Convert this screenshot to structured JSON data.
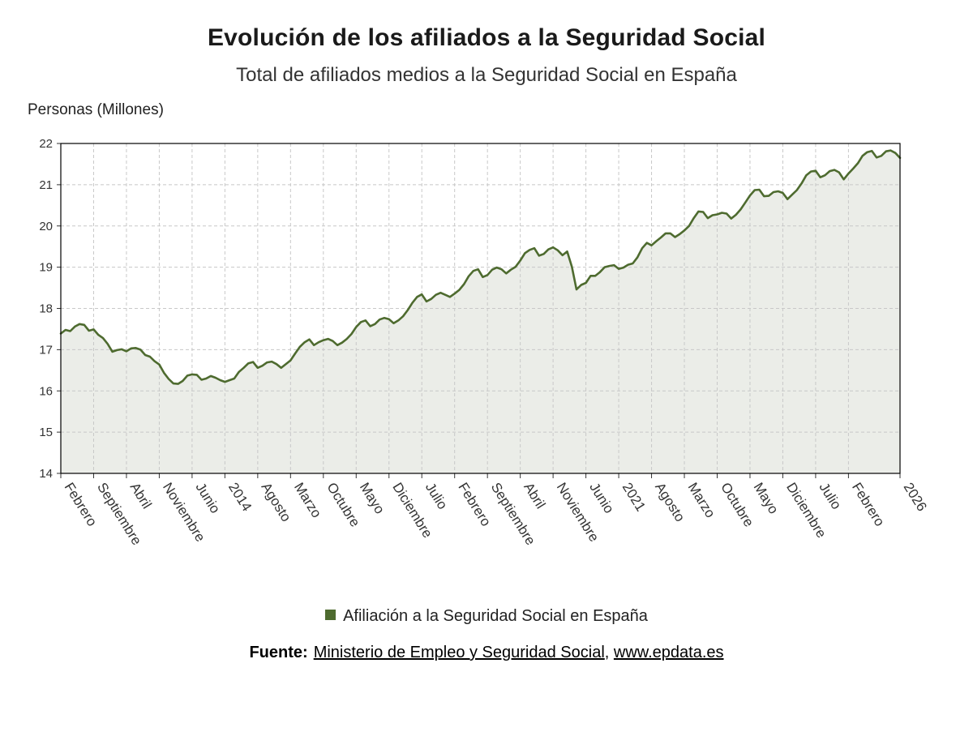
{
  "footer": {
    "source_label": "Fuente:",
    "source_name": "Ministerio de Empleo y Seguridad Social",
    "separator": ", ",
    "source_url": "www.epdata.es"
  },
  "chart_data": {
    "type": "line",
    "title": "Evolución de los afiliados a la Seguridad Social",
    "subtitle": "Total de afiliados medios a la Seguridad Social en España",
    "ylabel": "Personas (Millones)",
    "xlabel": "",
    "ylim": [
      14,
      22
    ],
    "y_ticks": [
      14,
      15,
      16,
      17,
      18,
      19,
      20,
      21,
      22
    ],
    "grid": "dashed",
    "legend_position": "bottom",
    "series_name": "Afiliación a la Seguridad Social en España",
    "color": "#4e6b2f",
    "area_color": "rgba(115,125,95,0.14)",
    "grid_color": "#c8c8c8",
    "x_unit": "month",
    "x_tick_labels": [
      {
        "index": 0,
        "label": "Febrero"
      },
      {
        "index": 7,
        "label": "Septiembre"
      },
      {
        "index": 14,
        "label": "Abril"
      },
      {
        "index": 21,
        "label": "Noviembre"
      },
      {
        "index": 28,
        "label": "Junio"
      },
      {
        "index": 35,
        "label": "2014"
      },
      {
        "index": 42,
        "label": "Agosto"
      },
      {
        "index": 49,
        "label": "Marzo"
      },
      {
        "index": 56,
        "label": "Octubre"
      },
      {
        "index": 63,
        "label": "Mayo"
      },
      {
        "index": 70,
        "label": "Diciembre"
      },
      {
        "index": 77,
        "label": "Julio"
      },
      {
        "index": 84,
        "label": "Febrero"
      },
      {
        "index": 91,
        "label": "Septiembre"
      },
      {
        "index": 98,
        "label": "Abril"
      },
      {
        "index": 105,
        "label": "Noviembre"
      },
      {
        "index": 112,
        "label": "Junio"
      },
      {
        "index": 119,
        "label": "2021"
      },
      {
        "index": 126,
        "label": "Agosto"
      },
      {
        "index": 133,
        "label": "Marzo"
      },
      {
        "index": 140,
        "label": "Octubre"
      },
      {
        "index": 147,
        "label": "Mayo"
      },
      {
        "index": 154,
        "label": "Diciembre"
      },
      {
        "index": 161,
        "label": "Julio"
      },
      {
        "index": 168,
        "label": "Febrero"
      },
      {
        "index": 179,
        "label": "2026"
      }
    ],
    "values": [
      17.39,
      17.48,
      17.45,
      17.56,
      17.62,
      17.6,
      17.46,
      17.49,
      17.36,
      17.28,
      17.14,
      16.95,
      16.99,
      17.01,
      16.96,
      17.03,
      17.04,
      17.0,
      16.87,
      16.83,
      16.72,
      16.64,
      16.44,
      16.29,
      16.18,
      16.17,
      16.24,
      16.37,
      16.4,
      16.39,
      16.27,
      16.3,
      16.36,
      16.32,
      16.26,
      16.22,
      16.26,
      16.3,
      16.46,
      16.56,
      16.67,
      16.7,
      16.56,
      16.61,
      16.69,
      16.71,
      16.65,
      16.56,
      16.65,
      16.74,
      16.91,
      17.07,
      17.18,
      17.25,
      17.11,
      17.18,
      17.23,
      17.26,
      17.21,
      17.11,
      17.17,
      17.26,
      17.38,
      17.55,
      17.67,
      17.71,
      17.57,
      17.62,
      17.73,
      17.77,
      17.74,
      17.64,
      17.71,
      17.81,
      17.96,
      18.14,
      18.28,
      18.34,
      18.17,
      18.23,
      18.33,
      18.38,
      18.33,
      18.28,
      18.36,
      18.45,
      18.59,
      18.78,
      18.91,
      18.95,
      18.76,
      18.81,
      18.94,
      18.99,
      18.95,
      18.85,
      18.94,
      19.01,
      19.16,
      19.34,
      19.42,
      19.46,
      19.28,
      19.32,
      19.43,
      19.48,
      19.41,
      19.29,
      19.38,
      19.01,
      18.46,
      18.57,
      18.62,
      18.79,
      18.79,
      18.88,
      19.0,
      19.03,
      19.05,
      18.96,
      18.99,
      19.06,
      19.09,
      19.24,
      19.46,
      19.59,
      19.53,
      19.63,
      19.72,
      19.82,
      19.82,
      19.73,
      19.8,
      19.89,
      20.0,
      20.19,
      20.35,
      20.34,
      20.19,
      20.26,
      20.28,
      20.32,
      20.3,
      20.18,
      20.27,
      20.4,
      20.57,
      20.74,
      20.87,
      20.88,
      20.72,
      20.73,
      20.82,
      20.84,
      20.8,
      20.65,
      20.76,
      20.87,
      21.03,
      21.23,
      21.32,
      21.34,
      21.18,
      21.23,
      21.33,
      21.36,
      21.3,
      21.13,
      21.27,
      21.39,
      21.52,
      21.7,
      21.79,
      21.82,
      21.66,
      21.7,
      21.81,
      21.83,
      21.77,
      21.65
    ]
  }
}
